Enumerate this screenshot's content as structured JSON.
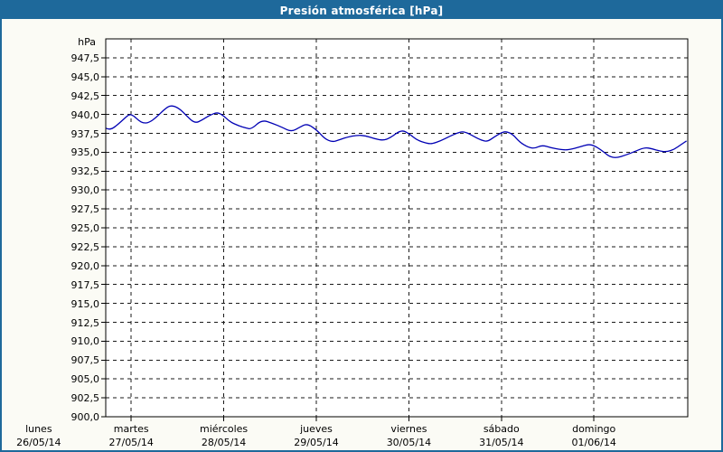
{
  "window": {
    "title": "Presión atmosférica [hPa]"
  },
  "colors": {
    "title_bar_bg": "#1e699b",
    "title_text": "#ffffff",
    "window_border": "#1e699b",
    "content_bg": "#fbfbf5",
    "plot_bg": "#ffffff",
    "plot_border": "#000000",
    "grid": "#1a1a1a",
    "axis_text": "#000000",
    "line": "#0000b4"
  },
  "chart_data": {
    "type": "line",
    "title": "Presión atmosférica [hPa]",
    "ylabel": "hPa",
    "ylim": [
      900,
      950
    ],
    "y_tick_step": 2.5,
    "y_tick_labels": [
      "947,5",
      "945,0",
      "942,5",
      "940,0",
      "937,5",
      "935,0",
      "932,5",
      "930,0",
      "927,5",
      "925,0",
      "922,5",
      "920,0",
      "917,5",
      "915,0",
      "912,5",
      "910,0",
      "907,5",
      "905,0",
      "902,5",
      "900,0"
    ],
    "grid": "dashed",
    "legend_position": "none",
    "categories": [
      {
        "weekday": "lunes",
        "date": "26/05/14"
      },
      {
        "weekday": "martes",
        "date": "27/05/14"
      },
      {
        "weekday": "miércoles",
        "date": "28/05/14"
      },
      {
        "weekday": "jueves",
        "date": "29/05/14"
      },
      {
        "weekday": "viernes",
        "date": "30/05/14"
      },
      {
        "weekday": "sábado",
        "date": "31/05/14"
      },
      {
        "weekday": "domingo",
        "date": "01/06/14"
      }
    ],
    "x_unit": "days since lunes 26/05/14 00:00",
    "x_plot_range": [
      0.72,
      7.01
    ],
    "series": [
      {
        "name": "Presión atmosférica",
        "unit": "hPa",
        "color": "#0000b4",
        "points": [
          [
            0.72,
            938.2
          ],
          [
            0.77,
            937.9
          ],
          [
            0.85,
            938.6
          ],
          [
            0.93,
            939.5
          ],
          [
            0.98,
            940.05
          ],
          [
            1.03,
            939.8
          ],
          [
            1.08,
            939.2
          ],
          [
            1.13,
            938.85
          ],
          [
            1.19,
            938.9
          ],
          [
            1.27,
            939.6
          ],
          [
            1.36,
            940.7
          ],
          [
            1.43,
            941.25
          ],
          [
            1.52,
            940.8
          ],
          [
            1.6,
            939.8
          ],
          [
            1.69,
            938.8
          ],
          [
            1.77,
            939.3
          ],
          [
            1.85,
            939.9
          ],
          [
            1.93,
            940.3
          ],
          [
            1.99,
            939.9
          ],
          [
            2.07,
            939.0
          ],
          [
            2.16,
            938.5
          ],
          [
            2.24,
            938.2
          ],
          [
            2.3,
            938.05
          ],
          [
            2.41,
            939.3
          ],
          [
            2.53,
            938.8
          ],
          [
            2.63,
            938.3
          ],
          [
            2.73,
            937.7
          ],
          [
            2.82,
            938.3
          ],
          [
            2.9,
            938.8
          ],
          [
            3.01,
            937.9
          ],
          [
            3.09,
            936.8
          ],
          [
            3.17,
            936.35
          ],
          [
            3.24,
            936.6
          ],
          [
            3.33,
            937.0
          ],
          [
            3.44,
            937.25
          ],
          [
            3.53,
            937.2
          ],
          [
            3.63,
            936.8
          ],
          [
            3.72,
            936.55
          ],
          [
            3.8,
            936.9
          ],
          [
            3.92,
            938.0
          ],
          [
            4.01,
            937.4
          ],
          [
            4.09,
            936.6
          ],
          [
            4.19,
            936.2
          ],
          [
            4.25,
            936.1
          ],
          [
            4.34,
            936.5
          ],
          [
            4.44,
            937.1
          ],
          [
            4.53,
            937.6
          ],
          [
            4.6,
            937.75
          ],
          [
            4.7,
            937.1
          ],
          [
            4.78,
            936.6
          ],
          [
            4.85,
            936.4
          ],
          [
            4.92,
            937.0
          ],
          [
            5.0,
            937.6
          ],
          [
            5.05,
            937.75
          ],
          [
            5.12,
            937.4
          ],
          [
            5.2,
            936.3
          ],
          [
            5.29,
            935.65
          ],
          [
            5.36,
            935.5
          ],
          [
            5.44,
            935.95
          ],
          [
            5.53,
            935.6
          ],
          [
            5.64,
            935.35
          ],
          [
            5.72,
            935.3
          ],
          [
            5.85,
            935.7
          ],
          [
            5.95,
            936.1
          ],
          [
            6.03,
            935.7
          ],
          [
            6.11,
            935.0
          ],
          [
            6.17,
            934.4
          ],
          [
            6.24,
            934.25
          ],
          [
            6.34,
            934.6
          ],
          [
            6.44,
            935.1
          ],
          [
            6.55,
            935.65
          ],
          [
            6.63,
            935.45
          ],
          [
            6.71,
            935.15
          ],
          [
            6.79,
            935.05
          ],
          [
            6.87,
            935.4
          ],
          [
            6.94,
            936.0
          ],
          [
            7.0,
            936.5
          ]
        ]
      }
    ]
  }
}
